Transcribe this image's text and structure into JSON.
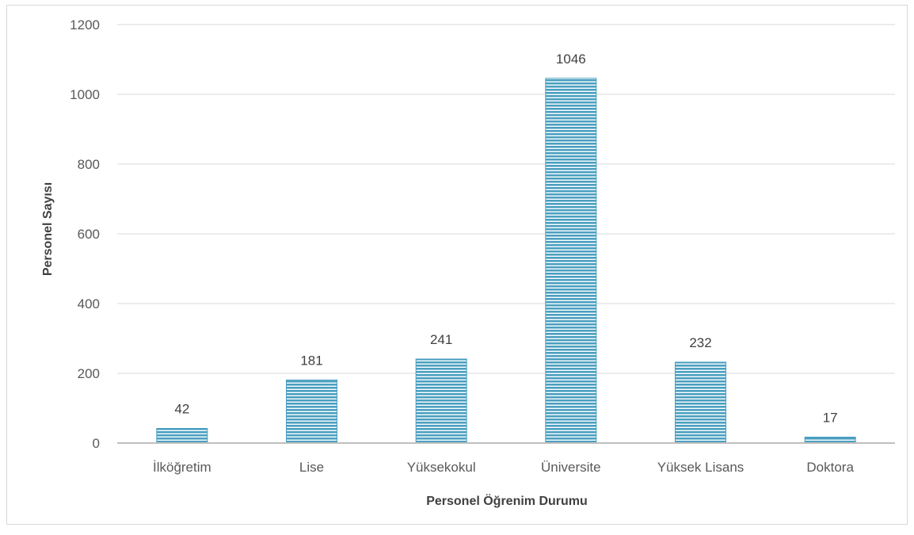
{
  "chart_data": {
    "type": "bar",
    "title": "",
    "xlabel": "Personel Öğrenim Durumu",
    "ylabel": "Personel Sayısı",
    "categories": [
      "İlköğretim",
      "Lise",
      "Yüksekokul",
      "Üniversite",
      "Yüksek Lisans",
      "Doktora"
    ],
    "values": [
      42,
      181,
      241,
      1046,
      232,
      17
    ],
    "ylim": [
      0,
      1200
    ],
    "yticks": [
      0,
      200,
      400,
      600,
      800,
      1000,
      1200
    ],
    "grid": true,
    "legend": "none",
    "colors": {
      "bar": "#4a9fc0",
      "bar_stripe": "#ffffff",
      "grid": "#d9d9d9",
      "axis": "#bfbfbf"
    }
  }
}
